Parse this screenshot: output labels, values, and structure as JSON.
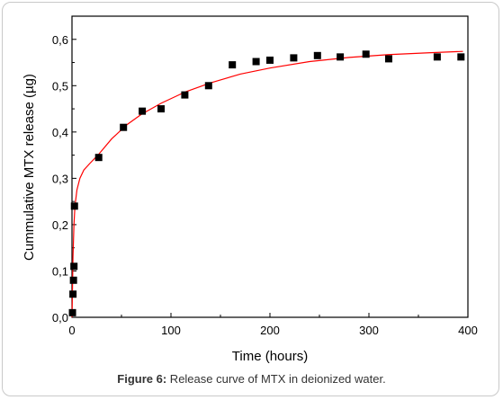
{
  "caption": {
    "label": "Figure 6:",
    "text": " Release curve of MTX in deionized water."
  },
  "chart_data": {
    "type": "scatter",
    "xlabel": "Time (hours)",
    "ylabel": "Cummulative MTX release (µg)",
    "xlim": [
      0,
      400
    ],
    "ylim": [
      0,
      0.65
    ],
    "x_ticks": [
      0,
      100,
      200,
      300,
      400
    ],
    "x_tick_labels": [
      "0",
      "100",
      "200",
      "300",
      "400"
    ],
    "y_ticks": [
      0.0,
      0.1,
      0.2,
      0.3,
      0.4,
      0.5,
      0.6
    ],
    "y_tick_labels": [
      "0,0",
      "0,1",
      "0,2",
      "0,3",
      "0,4",
      "0,5",
      "0,6"
    ],
    "grid": false,
    "series": [
      {
        "type": "scatter",
        "color": "#000000",
        "marker": "square",
        "x": [
          0.5,
          1,
          1.5,
          2,
          2.5,
          27,
          52,
          71,
          90,
          114,
          138,
          162,
          186,
          200,
          224,
          248,
          271,
          297,
          320,
          369,
          393
        ],
        "y": [
          0.01,
          0.05,
          0.08,
          0.11,
          0.24,
          0.345,
          0.41,
          0.445,
          0.45,
          0.48,
          0.5,
          0.545,
          0.552,
          0.555,
          0.56,
          0.565,
          0.562,
          0.568,
          0.558,
          0.562,
          0.562
        ]
      },
      {
        "type": "line",
        "color": "#ff0000",
        "x": [
          0,
          0.5,
          1,
          2,
          3,
          5,
          8,
          12,
          18,
          27,
          40,
          55,
          70,
          90,
          115,
          140,
          170,
          200,
          240,
          280,
          320,
          360,
          395
        ],
        "y": [
          0.0,
          0.06,
          0.13,
          0.2,
          0.24,
          0.275,
          0.3,
          0.318,
          0.332,
          0.352,
          0.385,
          0.415,
          0.438,
          0.462,
          0.487,
          0.506,
          0.525,
          0.538,
          0.552,
          0.561,
          0.567,
          0.571,
          0.574
        ]
      }
    ]
  }
}
